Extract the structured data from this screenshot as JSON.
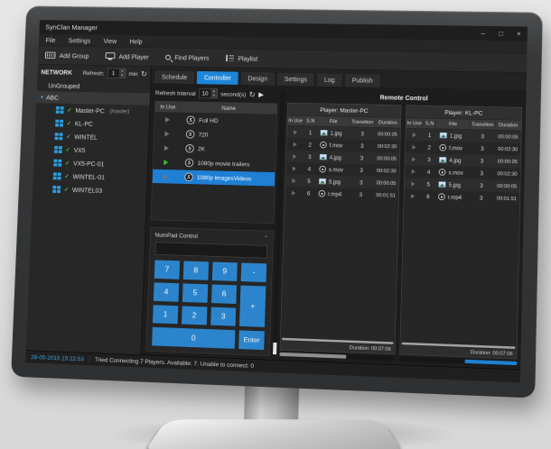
{
  "window": {
    "title": "SynClan Manager",
    "minimize": "–",
    "maximize": "□",
    "close": "×"
  },
  "menu": {
    "items": [
      "File",
      "Settings",
      "View",
      "Help"
    ]
  },
  "toolbar": {
    "add_group": "Add Group",
    "add_player": "Add Player",
    "find_players": "Find Players",
    "playlist": "Playlist"
  },
  "network": {
    "title": "NETWORK",
    "refresh_label": "Refresh:",
    "refresh_value": "1",
    "refresh_unit": "min",
    "ungrouped_label": "UnGrouped",
    "group_label": "ABC",
    "players": [
      {
        "name": "Master-PC",
        "suffix": "(master)"
      },
      {
        "name": "KL-PC",
        "suffix": ""
      },
      {
        "name": "WINTEL",
        "suffix": ""
      },
      {
        "name": "VX5",
        "suffix": ""
      },
      {
        "name": "VX5-PC-01",
        "suffix": ""
      },
      {
        "name": "WINTEL-01",
        "suffix": ""
      },
      {
        "name": "WINTEL03",
        "suffix": ""
      }
    ]
  },
  "tabs": [
    {
      "label": "Schedule",
      "state": ""
    },
    {
      "label": "Controller",
      "state": "active"
    },
    {
      "label": "Design",
      "state": ""
    },
    {
      "label": "Settings",
      "state": ""
    },
    {
      "label": "Log",
      "state": ""
    },
    {
      "label": "Publish",
      "state": ""
    }
  ],
  "controller": {
    "interval_label": "Refresh Interval",
    "interval_value": "10",
    "interval_unit": "second(s)",
    "schedule": {
      "col_inuse": "In Use",
      "col_name": "Name",
      "rows": [
        {
          "name": "Full HD",
          "play": "",
          "state": ""
        },
        {
          "name": "720",
          "play": "",
          "state": ""
        },
        {
          "name": "2K",
          "play": "",
          "state": ""
        },
        {
          "name": "1080p movie trailers",
          "play": "green",
          "state": ""
        },
        {
          "name": "1080p ImagesVideos",
          "play": "",
          "state": "selected"
        }
      ]
    },
    "numpad": {
      "title": "NumPad Control",
      "input_value": "",
      "keys": [
        "7",
        "8",
        "9",
        "-",
        "4",
        "5",
        "6",
        "+",
        "1",
        "2",
        "3",
        "0",
        "Enter"
      ]
    },
    "remote": {
      "title": "Remote Control",
      "columns": {
        "inuse": "In Use",
        "sn": "S.N",
        "file": "File",
        "transition": "Transition",
        "duration": "Duration"
      },
      "players": [
        {
          "title": "Player:  Master-PC",
          "footer": "Duration: 00:07:06",
          "rows": [
            {
              "sn": "1",
              "file": "1.jpg",
              "icon": "ico-img",
              "transition": "3",
              "duration": "00:00:05"
            },
            {
              "sn": "2",
              "file": "f.mov",
              "icon": "ico-vid",
              "transition": "3",
              "duration": "00:02:30"
            },
            {
              "sn": "3",
              "file": "4.jpg",
              "icon": "ico-img",
              "transition": "3",
              "duration": "00:00:05"
            },
            {
              "sn": "4",
              "file": "x.mov",
              "icon": "ico-vid",
              "transition": "3",
              "duration": "00:02:30"
            },
            {
              "sn": "5",
              "file": "5.jpg",
              "icon": "ico-img",
              "transition": "3",
              "duration": "00:00:05"
            },
            {
              "sn": "6",
              "file": "r.mp4",
              "icon": "ico-vid",
              "transition": "3",
              "duration": "00:01:51"
            }
          ]
        },
        {
          "title": "Player:  KL-PC",
          "footer": "Duration: 00:07:06",
          "rows": [
            {
              "sn": "1",
              "file": "1.jpg",
              "icon": "ico-img",
              "transition": "3",
              "duration": "00:00:05"
            },
            {
              "sn": "2",
              "file": "f.mov",
              "icon": "ico-vid",
              "transition": "3",
              "duration": "00:02:30"
            },
            {
              "sn": "3",
              "file": "4.jpg",
              "icon": "ico-img",
              "transition": "3",
              "duration": "00:00:05"
            },
            {
              "sn": "4",
              "file": "x.mov",
              "icon": "ico-vid",
              "transition": "3",
              "duration": "00:02:30"
            },
            {
              "sn": "5",
              "file": "5.jpg",
              "icon": "ico-img",
              "transition": "3",
              "duration": "00:00:05"
            },
            {
              "sn": "6",
              "file": "r.mp4",
              "icon": "ico-vid",
              "transition": "3",
              "duration": "00:01:51"
            }
          ]
        }
      ]
    }
  },
  "statusbar": {
    "timestamp": "28-05-2015 15:22:53",
    "message": "Tried Connecting 7 Players. Available: 7. Unable to connect: 0"
  }
}
